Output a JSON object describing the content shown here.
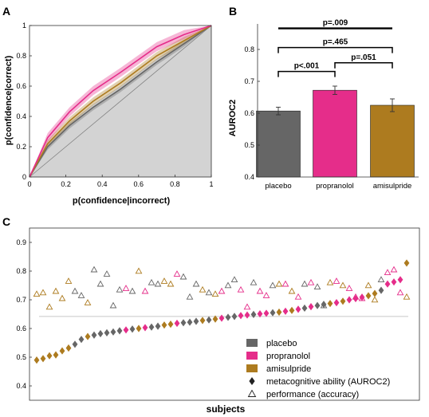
{
  "colors": {
    "placebo": "#666666",
    "propranolol": "#e52d8a",
    "amisulpride": "#ad7b1f",
    "roc_fill": "#d3d3d3",
    "axis": "#333333",
    "diagonal": "#808080",
    "hline": "#c8c8c8"
  },
  "panel_labels": {
    "a": "A",
    "b": "B",
    "c": "C"
  },
  "chart_data": [
    {
      "panel": "A",
      "type": "line",
      "xlabel": "p(confidence|incorrect)",
      "ylabel": "p(confidence|correct)",
      "xlim": [
        0,
        1
      ],
      "ylim": [
        0,
        1
      ],
      "x_ticks": [
        "0",
        "0.2",
        "0.4",
        "0.6",
        "0.8",
        "1"
      ],
      "y_ticks": [
        "0",
        "0.2",
        "0.4",
        "0.6",
        "0.8",
        "1"
      ],
      "grid": false,
      "chance_line": [
        [
          0,
          0
        ],
        [
          1,
          1
        ]
      ],
      "series": [
        {
          "key": "placebo",
          "points": [
            [
              0,
              0
            ],
            [
              0.1,
              0.2
            ],
            [
              0.22,
              0.34
            ],
            [
              0.35,
              0.46
            ],
            [
              0.5,
              0.58
            ],
            [
              0.7,
              0.76
            ],
            [
              0.85,
              0.88
            ],
            [
              1,
              1
            ]
          ],
          "band": 0.02
        },
        {
          "key": "amisulpride",
          "points": [
            [
              0,
              0
            ],
            [
              0.1,
              0.22
            ],
            [
              0.22,
              0.37
            ],
            [
              0.35,
              0.5
            ],
            [
              0.5,
              0.62
            ],
            [
              0.7,
              0.8
            ],
            [
              0.85,
              0.9
            ],
            [
              1,
              1
            ]
          ],
          "band": 0.025
        },
        {
          "key": "propranolol",
          "points": [
            [
              0,
              0
            ],
            [
              0.1,
              0.26
            ],
            [
              0.22,
              0.43
            ],
            [
              0.35,
              0.57
            ],
            [
              0.5,
              0.69
            ],
            [
              0.7,
              0.86
            ],
            [
              0.85,
              0.94
            ],
            [
              1,
              1
            ]
          ],
          "band": 0.03
        }
      ]
    },
    {
      "panel": "B",
      "type": "bar",
      "ylabel": "AUROC2",
      "ylim": [
        0.4,
        0.9
      ],
      "y_ticks": [
        "0.4",
        "0.5",
        "0.6",
        "0.7",
        "0.8"
      ],
      "categories": [
        "placebo",
        "propranolol",
        "amisulpride"
      ],
      "values": [
        0.607,
        0.672,
        0.625
      ],
      "errors": [
        0.012,
        0.013,
        0.02
      ],
      "significance": [
        {
          "label": "p=.009",
          "from": 0,
          "to": 2,
          "y": 0.866,
          "style": "thick"
        },
        {
          "label": "p=.465",
          "from": 0,
          "to": 2,
          "y": 0.806,
          "style": "bracket"
        },
        {
          "label": "p=.051",
          "from": 1,
          "to": 2,
          "y": 0.758,
          "style": "bracket"
        },
        {
          "label": "p<.001",
          "from": 0,
          "to": 1,
          "y": 0.731,
          "style": "bracket"
        }
      ]
    },
    {
      "panel": "C",
      "type": "scatter",
      "xlabel": "subjects",
      "ylim": [
        0.35,
        0.95
      ],
      "y_ticks": [
        "0.4",
        "0.5",
        "0.6",
        "0.7",
        "0.8",
        "0.9"
      ],
      "reference_line": 0.642,
      "legend": {
        "position": "bottom-right",
        "entries": [
          {
            "label": "placebo",
            "marker": "square",
            "key": "placebo"
          },
          {
            "label": "propranolol",
            "marker": "square",
            "key": "propranolol"
          },
          {
            "label": "amisulpride",
            "marker": "square",
            "key": "amisulpride"
          },
          {
            "label": "metacognitive ability (AUROC2)",
            "marker": "diamond",
            "key": "black"
          },
          {
            "label": "performance (accuracy)",
            "marker": "triangle",
            "key": "black"
          }
        ]
      },
      "subjects": [
        {
          "d": "amisulpride",
          "auroc": 0.49,
          "acc": 0.72
        },
        {
          "d": "amisulpride",
          "auroc": 0.495,
          "acc": 0.725
        },
        {
          "d": "amisulpride",
          "auroc": 0.505,
          "acc": 0.675
        },
        {
          "d": "amisulpride",
          "auroc": 0.508,
          "acc": 0.73
        },
        {
          "d": "amisulpride",
          "auroc": 0.522,
          "acc": 0.705
        },
        {
          "d": "amisulpride",
          "auroc": 0.532,
          "acc": 0.765
        },
        {
          "d": "placebo",
          "auroc": 0.545,
          "acc": 0.73
        },
        {
          "d": "placebo",
          "auroc": 0.562,
          "acc": 0.715
        },
        {
          "d": "amisulpride",
          "auroc": 0.572,
          "acc": 0.69
        },
        {
          "d": "placebo",
          "auroc": 0.577,
          "acc": 0.805
        },
        {
          "d": "placebo",
          "auroc": 0.582,
          "acc": 0.755
        },
        {
          "d": "placebo",
          "auroc": 0.585,
          "acc": 0.79
        },
        {
          "d": "placebo",
          "auroc": 0.588,
          "acc": 0.68
        },
        {
          "d": "placebo",
          "auroc": 0.592,
          "acc": 0.735
        },
        {
          "d": "propranolol",
          "auroc": 0.595,
          "acc": 0.74
        },
        {
          "d": "placebo",
          "auroc": 0.598,
          "acc": 0.73
        },
        {
          "d": "amisulpride",
          "auroc": 0.6,
          "acc": 0.8
        },
        {
          "d": "propranolol",
          "auroc": 0.603,
          "acc": 0.73
        },
        {
          "d": "placebo",
          "auroc": 0.605,
          "acc": 0.76
        },
        {
          "d": "placebo",
          "auroc": 0.608,
          "acc": 0.755
        },
        {
          "d": "amisulpride",
          "auroc": 0.612,
          "acc": 0.765
        },
        {
          "d": "amisulpride",
          "auroc": 0.615,
          "acc": 0.755
        },
        {
          "d": "propranolol",
          "auroc": 0.618,
          "acc": 0.79
        },
        {
          "d": "placebo",
          "auroc": 0.62,
          "acc": 0.78
        },
        {
          "d": "placebo",
          "auroc": 0.622,
          "acc": 0.71
        },
        {
          "d": "placebo",
          "auroc": 0.625,
          "acc": 0.755
        },
        {
          "d": "amisulpride",
          "auroc": 0.628,
          "acc": 0.735
        },
        {
          "d": "placebo",
          "auroc": 0.63,
          "acc": 0.725
        },
        {
          "d": "amisulpride",
          "auroc": 0.633,
          "acc": 0.72
        },
        {
          "d": "propranolol",
          "auroc": 0.636,
          "acc": 0.73
        },
        {
          "d": "placebo",
          "auroc": 0.639,
          "acc": 0.75
        },
        {
          "d": "placebo",
          "auroc": 0.642,
          "acc": 0.77
        },
        {
          "d": "propranolol",
          "auroc": 0.645,
          "acc": 0.735
        },
        {
          "d": "propranolol",
          "auroc": 0.647,
          "acc": 0.675
        },
        {
          "d": "placebo",
          "auroc": 0.649,
          "acc": 0.76
        },
        {
          "d": "propranolol",
          "auroc": 0.651,
          "acc": 0.73
        },
        {
          "d": "propranolol",
          "auroc": 0.653,
          "acc": 0.715
        },
        {
          "d": "placebo",
          "auroc": 0.655,
          "acc": 0.75
        },
        {
          "d": "amisulpride",
          "auroc": 0.657,
          "acc": 0.755
        },
        {
          "d": "propranolol",
          "auroc": 0.66,
          "acc": 0.755
        },
        {
          "d": "amisulpride",
          "auroc": 0.663,
          "acc": 0.73
        },
        {
          "d": "propranolol",
          "auroc": 0.667,
          "acc": 0.71
        },
        {
          "d": "placebo",
          "auroc": 0.671,
          "acc": 0.755
        },
        {
          "d": "propranolol",
          "auroc": 0.676,
          "acc": 0.76
        },
        {
          "d": "placebo",
          "auroc": 0.68,
          "acc": 0.745
        },
        {
          "d": "placebo",
          "auroc": 0.684,
          "acc": 0.68
        },
        {
          "d": "amisulpride",
          "auroc": 0.687,
          "acc": 0.76
        },
        {
          "d": "propranolol",
          "auroc": 0.69,
          "acc": 0.765
        },
        {
          "d": "amisulpride",
          "auroc": 0.695,
          "acc": 0.75
        },
        {
          "d": "propranolol",
          "auroc": 0.7,
          "acc": 0.74
        },
        {
          "d": "propranolol",
          "auroc": 0.704,
          "acc": 0.71
        },
        {
          "d": "propranolol",
          "auroc": 0.709,
          "acc": 0.705
        },
        {
          "d": "amisulpride",
          "auroc": 0.714,
          "acc": 0.75
        },
        {
          "d": "amisulpride",
          "auroc": 0.722,
          "acc": 0.7
        },
        {
          "d": "placebo",
          "auroc": 0.733,
          "acc": 0.77
        },
        {
          "d": "propranolol",
          "auroc": 0.755,
          "acc": 0.795
        },
        {
          "d": "propranolol",
          "auroc": 0.762,
          "acc": 0.805
        },
        {
          "d": "propranolol",
          "auroc": 0.77,
          "acc": 0.725
        },
        {
          "d": "amisulpride",
          "auroc": 0.828,
          "acc": 0.71
        }
      ]
    }
  ]
}
